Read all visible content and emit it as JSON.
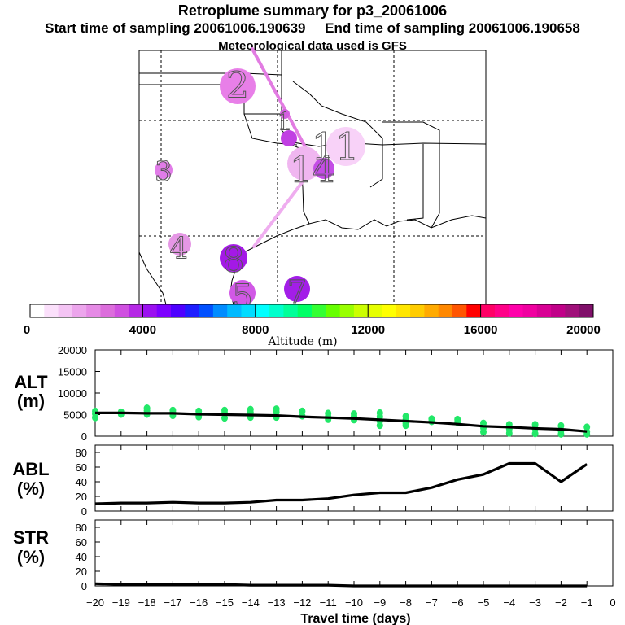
{
  "header": {
    "title": "Retroplume summary for p3_20061006",
    "start_label": "Start time of sampling 20061006.190639",
    "end_label": "End time of sampling 20061006.190658",
    "met_label": "Meteorological data used is GFS"
  },
  "map": {
    "cluster_labels": [
      "2",
      "1",
      "3",
      "11",
      "14",
      "4",
      "8",
      "5",
      "7"
    ]
  },
  "colorbar": {
    "ticks": [
      "0",
      "4000",
      "8000",
      "12000",
      "16000",
      "20000"
    ],
    "label": "Altitude (m)",
    "colors": [
      "#ffffff",
      "#fbe0fb",
      "#f4c4f4",
      "#eca5ec",
      "#e58ae5",
      "#dc6ddc",
      "#cf50e0",
      "#b528e5",
      "#9b10f0",
      "#7d00ff",
      "#4e00ff",
      "#1e1eff",
      "#0050ff",
      "#008cff",
      "#00baff",
      "#00dcff",
      "#00ffff",
      "#00ffcc",
      "#00ff99",
      "#00ff66",
      "#33ff33",
      "#66ff00",
      "#99ff00",
      "#ccff00",
      "#e6ff00",
      "#ffff00",
      "#ffe600",
      "#ffcc00",
      "#ffaa00",
      "#ff8800",
      "#ff5500",
      "#ff0000",
      "#ff0066",
      "#ff0088",
      "#ff00aa",
      "#f000a0",
      "#d80094",
      "#c00088",
      "#a0107a",
      "#80106a"
    ]
  },
  "chart_data": [
    {
      "type": "line",
      "name": "ALT",
      "ylabel": "ALT\n(m)",
      "ylabel_lines": [
        "ALT",
        "(m)"
      ],
      "xlabel": "Travel time (days)",
      "x": [
        -20,
        -19,
        -18,
        -17,
        -16,
        -15,
        -14,
        -13,
        -12,
        -11,
        -10,
        -9,
        -8,
        -7,
        -6,
        -5,
        -4,
        -3,
        -2,
        -1
      ],
      "values": [
        5400,
        5400,
        5300,
        5300,
        5100,
        5000,
        4900,
        4800,
        4500,
        4300,
        4100,
        3800,
        3500,
        3200,
        2800,
        2300,
        2100,
        1800,
        1600,
        1100
      ],
      "scatter_points": [
        [
          -20,
          5800
        ],
        [
          -20,
          5200
        ],
        [
          -20,
          4300
        ],
        [
          -19,
          5600
        ],
        [
          -19,
          5100
        ],
        [
          -18,
          6500
        ],
        [
          -18,
          5900
        ],
        [
          -18,
          5100
        ],
        [
          -17,
          6000
        ],
        [
          -17,
          5500
        ],
        [
          -17,
          4800
        ],
        [
          -16,
          5800
        ],
        [
          -16,
          5200
        ],
        [
          -16,
          4500
        ],
        [
          -15,
          6000
        ],
        [
          -15,
          5400
        ],
        [
          -15,
          4200
        ],
        [
          -14,
          6200
        ],
        [
          -14,
          5500
        ],
        [
          -14,
          4400
        ],
        [
          -13,
          6300
        ],
        [
          -13,
          5600
        ],
        [
          -13,
          4400
        ],
        [
          -12,
          5800
        ],
        [
          -12,
          4700
        ],
        [
          -11,
          5300
        ],
        [
          -11,
          4500
        ],
        [
          -11,
          3900
        ],
        [
          -10,
          5200
        ],
        [
          -10,
          4600
        ],
        [
          -10,
          3800
        ],
        [
          -9,
          5400
        ],
        [
          -9,
          4500
        ],
        [
          -9,
          3500
        ],
        [
          -9,
          2500
        ],
        [
          -8,
          4600
        ],
        [
          -8,
          3800
        ],
        [
          -8,
          3000
        ],
        [
          -8,
          2500
        ],
        [
          -7,
          4000
        ],
        [
          -7,
          3400
        ],
        [
          -6,
          3900
        ],
        [
          -6,
          3200
        ],
        [
          -5,
          3000
        ],
        [
          -5,
          1900
        ],
        [
          -5,
          1000
        ],
        [
          -4,
          2700
        ],
        [
          -4,
          1700
        ],
        [
          -4,
          700
        ],
        [
          -3,
          2700
        ],
        [
          -3,
          1800
        ],
        [
          -3,
          600
        ],
        [
          -2,
          2400
        ],
        [
          -2,
          1300
        ],
        [
          -2,
          500
        ],
        [
          -1,
          2100
        ],
        [
          -1,
          1000
        ],
        [
          -1,
          500
        ]
      ],
      "xlim": [
        -20,
        0
      ],
      "ylim": [
        0,
        20000
      ],
      "yticks": [
        0,
        5000,
        10000,
        15000,
        20000
      ]
    },
    {
      "type": "line",
      "name": "ABL",
      "ylabel_lines": [
        "ABL",
        "(%)"
      ],
      "x": [
        -20,
        -19,
        -18,
        -17,
        -16,
        -15,
        -14,
        -13,
        -12,
        -11,
        -10,
        -9,
        -8,
        -7,
        -6,
        -5,
        -4,
        -3,
        -2,
        -1
      ],
      "values": [
        10,
        11,
        11,
        12,
        11,
        11,
        12,
        15,
        15,
        17,
        22,
        25,
        25,
        32,
        43,
        50,
        65,
        65,
        40,
        64
      ],
      "xlim": [
        -20,
        0
      ],
      "ylim": [
        0,
        90
      ],
      "yticks": [
        0,
        20,
        40,
        60,
        80
      ]
    },
    {
      "type": "line",
      "name": "STR",
      "ylabel_lines": [
        "STR",
        "(%)"
      ],
      "x": [
        -20,
        -19,
        -18,
        -17,
        -16,
        -15,
        -14,
        -13,
        -12,
        -11,
        -10,
        -9,
        -8,
        -7,
        -6,
        -5,
        -4,
        -3,
        -2,
        -1
      ],
      "values": [
        3,
        2,
        2,
        2,
        2,
        2,
        1,
        1,
        1,
        1,
        0,
        0,
        0,
        0,
        0,
        0,
        0,
        0,
        0,
        0
      ],
      "xlim": [
        -20,
        0
      ],
      "ylim": [
        0,
        90
      ],
      "yticks": [
        0,
        20,
        40,
        60,
        80
      ],
      "xticks": [
        -20,
        -19,
        -18,
        -17,
        -16,
        -15,
        -14,
        -13,
        -12,
        -11,
        -10,
        -9,
        -8,
        -7,
        -6,
        -5,
        -4,
        -3,
        -2,
        -1,
        0
      ],
      "xlabel": "Travel time (days)"
    }
  ]
}
